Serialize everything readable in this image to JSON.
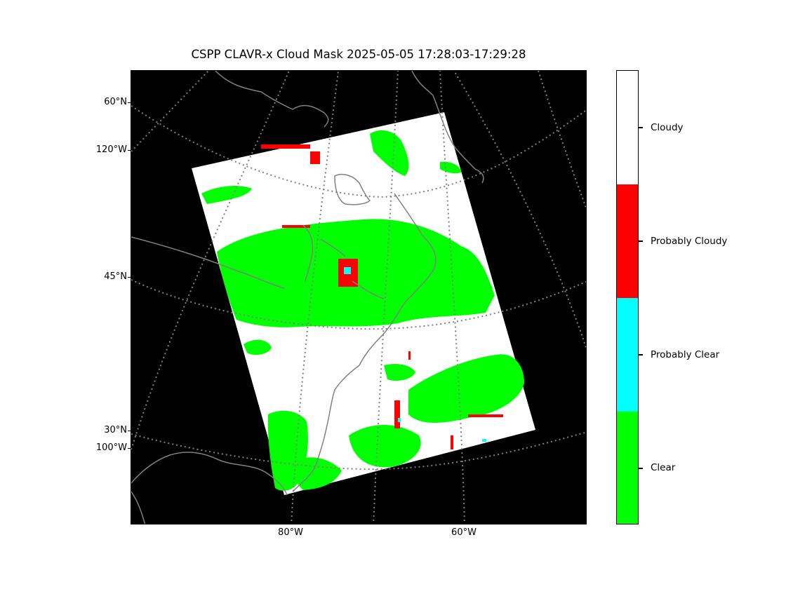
{
  "title": "CSPP CLAVR-x Cloud Mask 2025-05-05 17:28:03-17:29:28",
  "map": {
    "lat_labels": [
      "60°N",
      "45°N",
      "30°N"
    ],
    "lon_labels_left": [
      "120°W",
      "100°W"
    ],
    "lon_labels_bottom": [
      "80°W",
      "60°W"
    ],
    "background_color": "#000000",
    "coastline_color": "#808080",
    "gridline_color": "#808080",
    "gridline_style": "dotted"
  },
  "legend": {
    "categories": [
      {
        "label": "Cloudy",
        "color": "#ffffff"
      },
      {
        "label": "Probably Cloudy",
        "color": "#ff0000"
      },
      {
        "label": "Probably Clear",
        "color": "#00ffff"
      },
      {
        "label": "Clear",
        "color": "#00ff00"
      }
    ]
  }
}
